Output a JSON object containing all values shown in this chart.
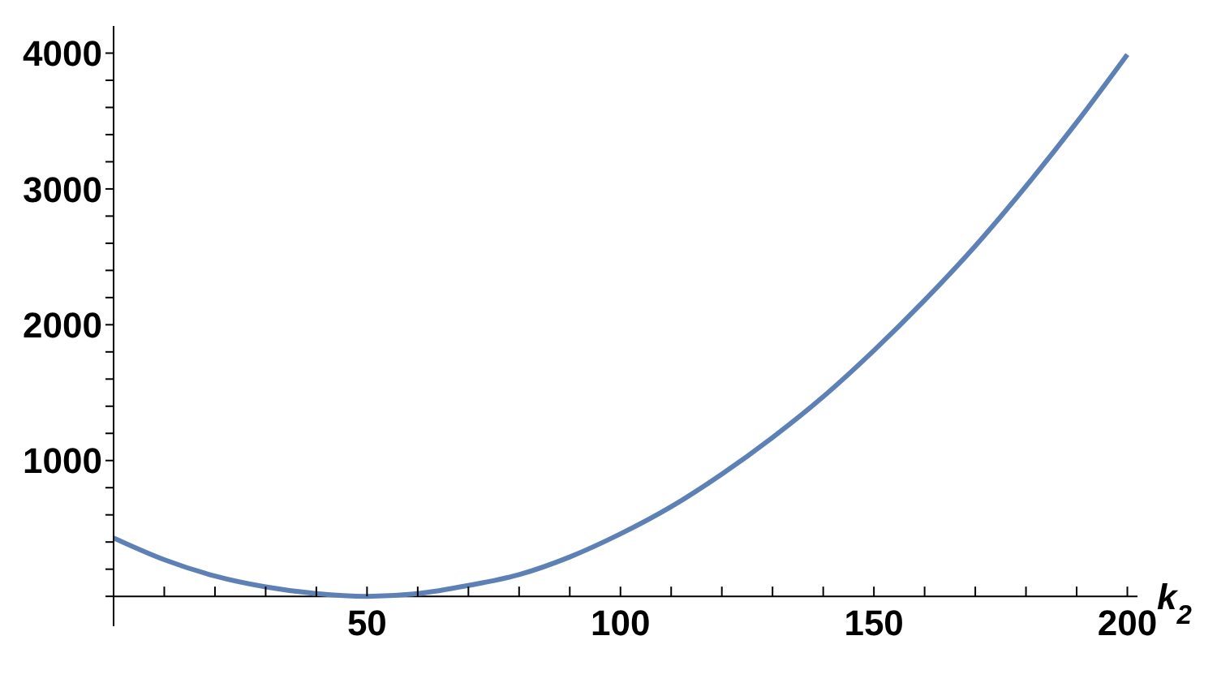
{
  "chart_data": {
    "type": "line",
    "xlabel": "k$_{2}$",
    "x": [
      0,
      10,
      20,
      30,
      40,
      50,
      60,
      70,
      80,
      90,
      100,
      110,
      120,
      130,
      140,
      150,
      160,
      170,
      180,
      190,
      200
    ],
    "series": [
      {
        "color": "#5e81b5",
        "values": [
          430,
          270,
          150,
          70,
          20,
          0,
          20,
          80,
          160,
          290,
          460,
          660,
          900,
          1170,
          1470,
          1810,
          2180,
          2580,
          3020,
          3490,
          3990
        ]
      }
    ],
    "xlim": [
      0,
      202
    ],
    "xticks": [
      {
        "value": 10,
        "label": null
      },
      {
        "value": 20,
        "label": null
      },
      {
        "value": 30,
        "label": null
      },
      {
        "value": 40,
        "label": null
      },
      50,
      {
        "value": 60,
        "label": null
      },
      {
        "value": 70,
        "label": null
      },
      {
        "value": 80,
        "label": null
      },
      {
        "value": 90,
        "label": null
      },
      100,
      {
        "value": 110,
        "label": null
      },
      {
        "value": 120,
        "label": null
      },
      {
        "value": 130,
        "label": null
      },
      {
        "value": 140,
        "label": null
      },
      150,
      {
        "value": 160,
        "label": null
      },
      {
        "value": 170,
        "label": null
      },
      {
        "value": 180,
        "label": null
      },
      {
        "value": 190,
        "label": null
      },
      200
    ],
    "ylim": [
      -220,
      4200
    ],
    "yticks": [
      {
        "value": 0,
        "label": null
      },
      {
        "value": 200,
        "label": null
      },
      {
        "value": 400,
        "label": null
      },
      {
        "value": 600,
        "label": null
      },
      {
        "value": 800,
        "label": null
      },
      1000,
      {
        "value": 1200,
        "label": null
      },
      {
        "value": 1400,
        "label": null
      },
      {
        "value": 1600,
        "label": null
      },
      {
        "value": 1800,
        "label": null
      },
      2000,
      {
        "value": 2200,
        "label": null
      },
      {
        "value": 2400,
        "label": null
      },
      {
        "value": 2600,
        "label": null
      },
      {
        "value": 2800,
        "label": null
      },
      3000,
      {
        "value": 3200,
        "label": null
      },
      {
        "value": 3400,
        "label": null
      },
      {
        "value": 3600,
        "label": null
      },
      {
        "value": 3800,
        "label": null
      },
      4000
    ],
    "grid": false,
    "legend": false,
    "marker": "none",
    "line_style": "solid"
  }
}
